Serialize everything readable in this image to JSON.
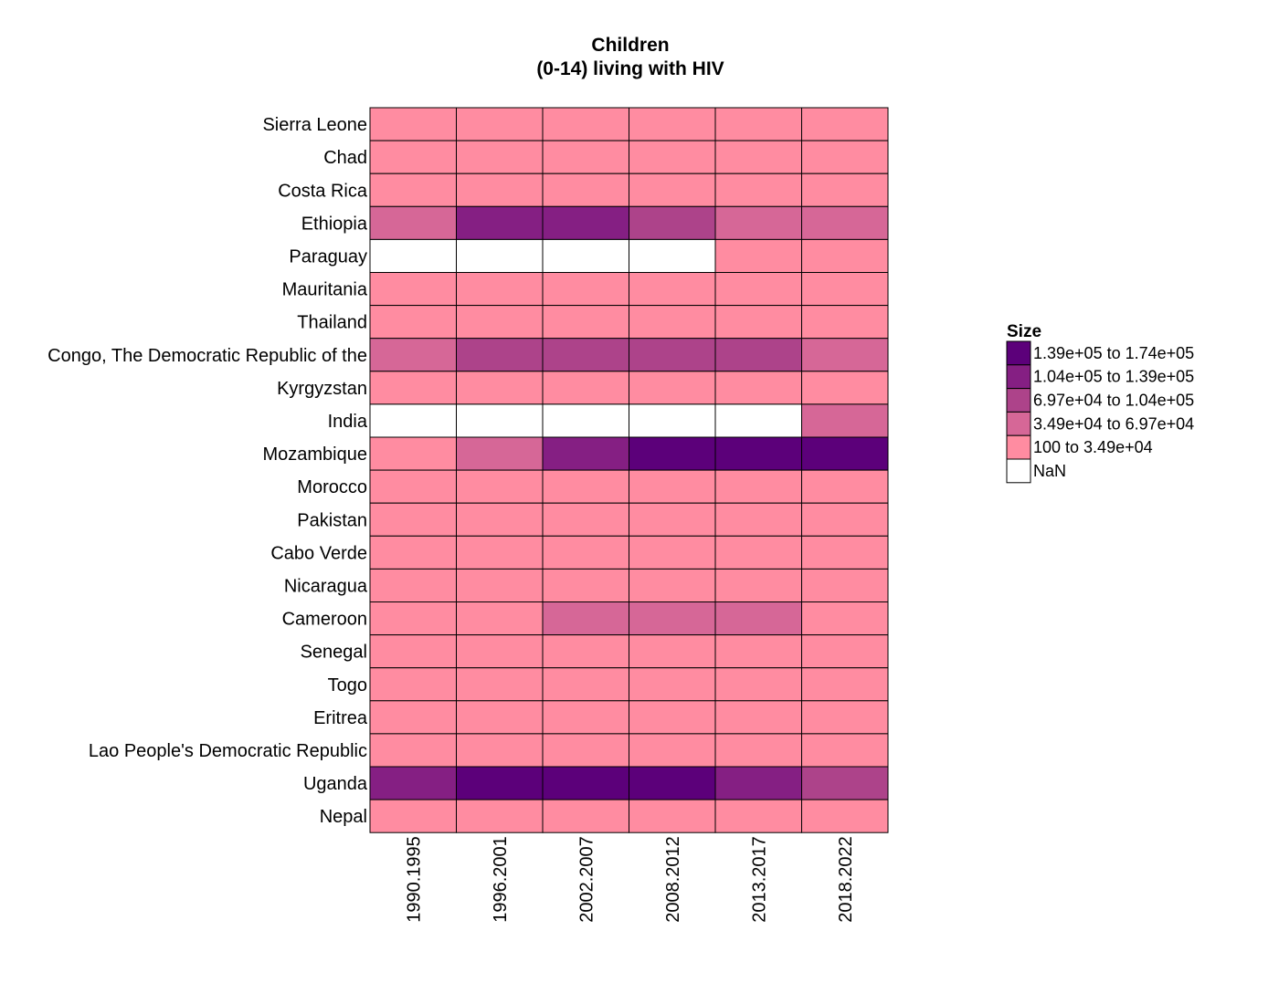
{
  "chart_data": {
    "type": "heatmap",
    "title": [
      "Children",
      "(0-14) living with HIV"
    ],
    "x": [
      "1990.1995",
      "1996.2001",
      "2002.2007",
      "2008.2012",
      "2013.2017",
      "2018.2022"
    ],
    "y": [
      "Sierra Leone",
      "Chad",
      "Costa Rica",
      "Ethiopia",
      "Paraguay",
      "Mauritania",
      "Thailand",
      "Congo, The Democratic Republic of the",
      "Kyrgyzstan",
      "India",
      "Mozambique",
      "Morocco",
      "Pakistan",
      "Cabo Verde",
      "Nicaragua",
      "Cameroon",
      "Senegal",
      "Togo",
      "Eritrea",
      "Lao People's Democratic Republic",
      "Uganda",
      "Nepal"
    ],
    "bins": [
      [
        0,
        0,
        0,
        0,
        0,
        0
      ],
      [
        0,
        0,
        0,
        0,
        0,
        0
      ],
      [
        0,
        0,
        0,
        0,
        0,
        0
      ],
      [
        1,
        3,
        3,
        2,
        1,
        1
      ],
      [
        -1,
        -1,
        -1,
        -1,
        0,
        0
      ],
      [
        0,
        0,
        0,
        0,
        0,
        0
      ],
      [
        0,
        0,
        0,
        0,
        0,
        0
      ],
      [
        1,
        2,
        2,
        2,
        2,
        1
      ],
      [
        0,
        0,
        0,
        0,
        0,
        0
      ],
      [
        -1,
        -1,
        -1,
        -1,
        -1,
        1
      ],
      [
        0,
        1,
        3,
        4,
        4,
        4
      ],
      [
        0,
        0,
        0,
        0,
        0,
        0
      ],
      [
        0,
        0,
        0,
        0,
        0,
        0
      ],
      [
        0,
        0,
        0,
        0,
        0,
        0
      ],
      [
        0,
        0,
        0,
        0,
        0,
        0
      ],
      [
        0,
        0,
        1,
        1,
        1,
        0
      ],
      [
        0,
        0,
        0,
        0,
        0,
        0
      ],
      [
        0,
        0,
        0,
        0,
        0,
        0
      ],
      [
        0,
        0,
        0,
        0,
        0,
        0
      ],
      [
        0,
        0,
        0,
        0,
        0,
        0
      ],
      [
        3,
        4,
        4,
        4,
        3,
        2
      ],
      [
        0,
        0,
        0,
        0,
        0,
        0
      ]
    ],
    "legend": {
      "title": "Size",
      "position": "right",
      "items": [
        {
          "label": "1.39e+05  to  1.74e+05",
          "color": "#5c007a"
        },
        {
          "label": "1.04e+05  to  1.39e+05",
          "color": "#851f83"
        },
        {
          "label": "6.97e+04  to  1.04e+05",
          "color": "#ad438a"
        },
        {
          "label": "3.49e+04  to  6.97e+04",
          "color": "#d66797"
        },
        {
          "label": "100  to  3.49e+04",
          "color": "#ff8ca1"
        },
        {
          "label": "NaN",
          "color": "#ffffff"
        }
      ]
    },
    "bin_colors": [
      "#ff8ca1",
      "#d66797",
      "#ad438a",
      "#851f83",
      "#5c007a"
    ],
    "nan_color": "#ffffff"
  }
}
